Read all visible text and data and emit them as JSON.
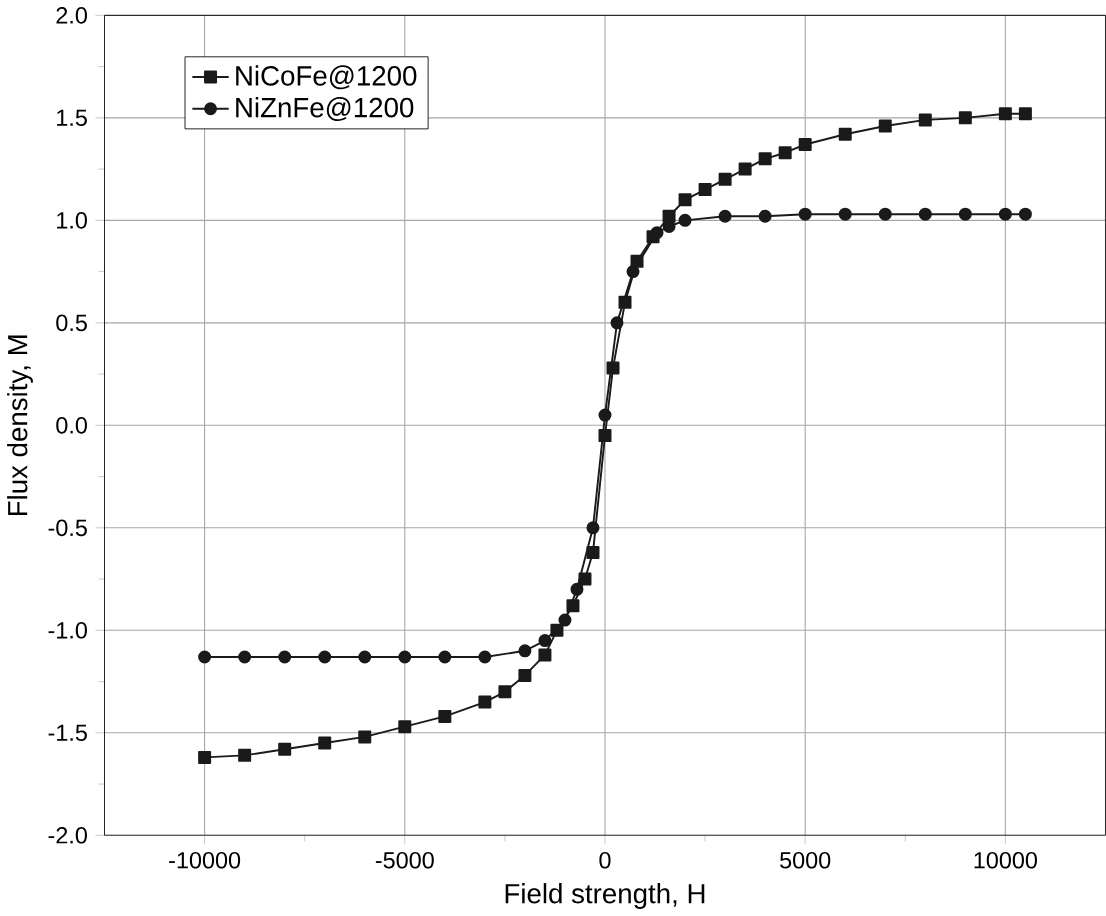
{
  "chart_data": {
    "type": "line",
    "xlabel": "Field strength, H",
    "ylabel": "Flux density, M",
    "xlim": [
      -12500,
      12500
    ],
    "xticks": [
      -10000,
      -5000,
      0,
      5000,
      10000
    ],
    "ylim": [
      -2.0,
      2.0
    ],
    "yticks": [
      {
        "value": -2.0,
        "label": "-2.0"
      },
      {
        "value": -1.5,
        "label": "-1.5"
      },
      {
        "value": -1.0,
        "label": "-1.0"
      },
      {
        "value": -0.5,
        "label": "-0.5"
      },
      {
        "value": 0.0,
        "label": "0.0"
      },
      {
        "value": 0.5,
        "label": "0.5"
      },
      {
        "value": 1.0,
        "label": "1.0"
      },
      {
        "value": 1.5,
        "label": "1.5"
      },
      {
        "value": 2.0,
        "label": "2.0"
      }
    ],
    "grid": true,
    "legend": "top left",
    "line_style": "solid",
    "series": [
      {
        "name": "NiCoFe@1200",
        "color": "#1a1a1a",
        "marker": "square",
        "x": [
          -10000,
          -9000,
          -8000,
          -7000,
          -6000,
          -5000,
          -4000,
          -3000,
          -2500,
          -2000,
          -1500,
          -1200,
          -800,
          -500,
          -300,
          0,
          200,
          500,
          800,
          1200,
          1600,
          2000,
          2500,
          3000,
          3500,
          4000,
          4500,
          5000,
          6000,
          7000,
          8000,
          9000,
          10000,
          10500
        ],
        "values": [
          -1.62,
          -1.61,
          -1.58,
          -1.55,
          -1.52,
          -1.47,
          -1.42,
          -1.35,
          -1.3,
          -1.22,
          -1.12,
          -1.0,
          -0.88,
          -0.75,
          -0.62,
          -0.05,
          0.28,
          0.6,
          0.8,
          0.92,
          1.02,
          1.1,
          1.15,
          1.2,
          1.25,
          1.3,
          1.33,
          1.37,
          1.42,
          1.46,
          1.49,
          1.5,
          1.52,
          1.52
        ]
      },
      {
        "name": "NiZnFe@1200",
        "color": "#1a1a1a",
        "marker": "circle",
        "x": [
          -10000,
          -9000,
          -8000,
          -7000,
          -6000,
          -5000,
          -4000,
          -3000,
          -2000,
          -1500,
          -1000,
          -700,
          -300,
          0,
          300,
          700,
          1300,
          1600,
          2000,
          3000,
          4000,
          5000,
          6000,
          7000,
          8000,
          9000,
          10000,
          10500
        ],
        "values": [
          -1.13,
          -1.13,
          -1.13,
          -1.13,
          -1.13,
          -1.13,
          -1.13,
          -1.13,
          -1.1,
          -1.05,
          -0.95,
          -0.8,
          -0.5,
          0.05,
          0.5,
          0.75,
          0.94,
          0.97,
          1.0,
          1.02,
          1.02,
          1.03,
          1.03,
          1.03,
          1.03,
          1.03,
          1.03,
          1.03
        ]
      }
    ]
  }
}
